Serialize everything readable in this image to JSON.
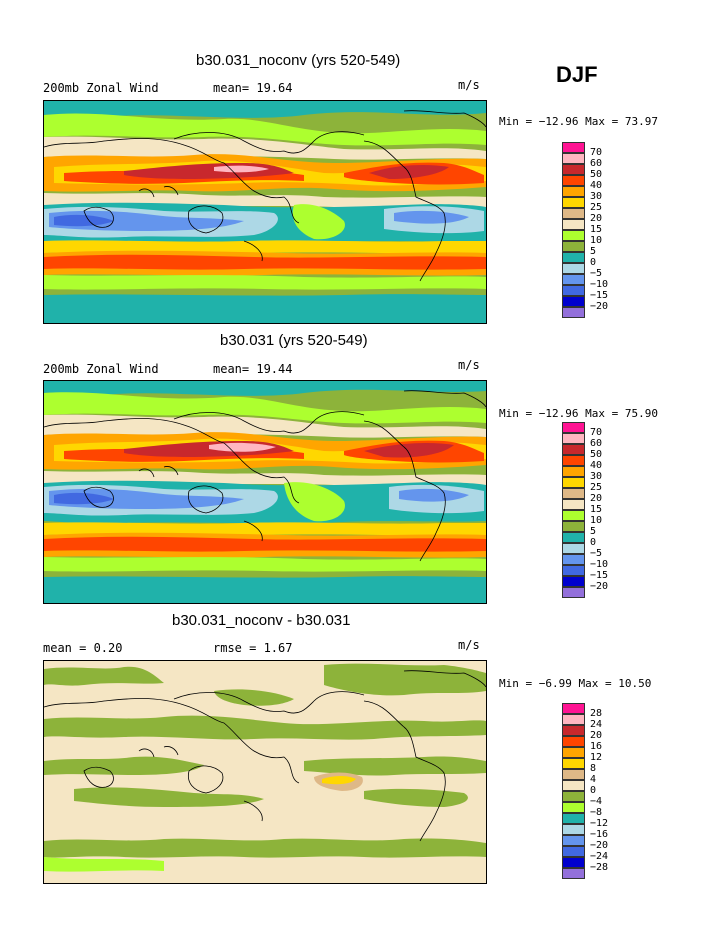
{
  "season": "DJF",
  "panels": [
    {
      "title": "b30.031_noconv (yrs 520-549)",
      "left_label": "200mb Zonal Wind",
      "mean_text": "mean=  19.64",
      "units": "m/s",
      "minmax": "Min = −12.96 Max =  73.97",
      "levels": [
        "70",
        "60",
        "50",
        "40",
        "30",
        "25",
        "20",
        "15",
        "10",
        "5",
        "0",
        "−5",
        "−10",
        "−15",
        "−20"
      ]
    },
    {
      "title": "b30.031 (yrs 520-549)",
      "left_label": "200mb Zonal Wind",
      "mean_text": "mean=  19.44",
      "units": "m/s",
      "minmax": "Min = −12.96 Max =  75.90",
      "levels": [
        "70",
        "60",
        "50",
        "40",
        "30",
        "25",
        "20",
        "15",
        "10",
        "5",
        "0",
        "−5",
        "−10",
        "−15",
        "−20"
      ]
    },
    {
      "title": "b30.031_noconv - b30.031",
      "left_label": "mean =   0.20",
      "mean_text": "rmse =   1.67",
      "units": "m/s",
      "minmax": "Min =  −6.99 Max =  10.50",
      "levels": [
        "28",
        "24",
        "20",
        "16",
        "12",
        "8",
        "4",
        "0",
        "−4",
        "−8",
        "−12",
        "−16",
        "−20",
        "−24",
        "−28"
      ]
    }
  ],
  "colors": {
    "mean_palette": [
      "#ff1493",
      "#ffb6c1",
      "#c8282d",
      "#ff4500",
      "#ffa500",
      "#ffd700",
      "#deb887",
      "#f5e6c4",
      "#adff2f",
      "#8db33a",
      "#20b2aa",
      "#add8e6",
      "#6495ed",
      "#4169e1",
      "#0000cd",
      "#9370db"
    ],
    "diff_palette": [
      "#ff1493",
      "#ffb6c1",
      "#c8282d",
      "#ff4500",
      "#ffa500",
      "#ffd700",
      "#deb887",
      "#f5e6c4",
      "#8db33a",
      "#adff2f",
      "#20b2aa",
      "#add8e6",
      "#6495ed",
      "#4169e1",
      "#0000cd",
      "#9370db"
    ]
  }
}
